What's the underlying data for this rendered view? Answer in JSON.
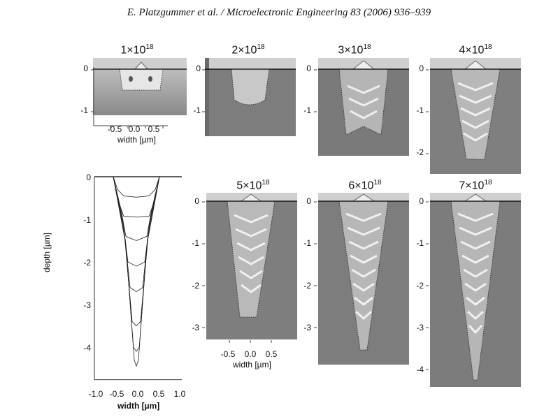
{
  "header": {
    "text": "E. Platzgummer et al. / Microelectronic Engineering 83 (2006) 936–939"
  },
  "panels": [
    {
      "base": "1×10",
      "exp": "18"
    },
    {
      "base": "2×10",
      "exp": "18"
    },
    {
      "base": "3×10",
      "exp": "18"
    },
    {
      "base": "4×10",
      "exp": "18"
    },
    {
      "base": "5×10",
      "exp": "18"
    },
    {
      "base": "6×10",
      "exp": "18"
    },
    {
      "base": "7×10",
      "exp": "18"
    }
  ],
  "ticks": {
    "y0": "0",
    "y1": "-1",
    "y2": "-2",
    "y3": "-3",
    "y4": "-4",
    "x_m05": "-0.5",
    "x_0": "0.0",
    "x_05": "0.5",
    "x_m10": "-1.0",
    "x_10": "1.0"
  },
  "labels": {
    "width": "width  [µm]",
    "width_bold": "width  [µm]",
    "depth": "depth [µm]"
  },
  "chart_data": {
    "type": "line",
    "title": "",
    "xlabel": "width [µm]",
    "ylabel": "depth [µm]",
    "xlim": [
      -1.0,
      1.0
    ],
    "ylim": [
      -4.6,
      0
    ],
    "series": [
      {
        "x": [
          -0.55,
          -0.45,
          -0.3,
          0,
          0.3,
          0.45,
          0.55
        ],
        "y": [
          0,
          -0.3,
          -0.45,
          -0.48,
          -0.45,
          -0.3,
          0
        ]
      },
      {
        "x": [
          -0.55,
          -0.42,
          -0.3,
          0,
          0.3,
          0.42,
          0.55
        ],
        "y": [
          0,
          -0.6,
          -0.93,
          -0.95,
          -0.93,
          -0.6,
          0
        ]
      },
      {
        "x": [
          -0.55,
          -0.36,
          -0.25,
          0,
          0.25,
          0.36,
          0.55
        ],
        "y": [
          0,
          -0.8,
          -1.4,
          -1.5,
          -1.4,
          -0.8,
          0
        ]
      },
      {
        "x": [
          -0.55,
          -0.33,
          -0.2,
          0,
          0.2,
          0.33,
          0.55
        ],
        "y": [
          0,
          -1.0,
          -2.0,
          -2.1,
          -2.0,
          -1.0,
          0
        ]
      },
      {
        "x": [
          -0.55,
          -0.3,
          -0.15,
          0,
          0.15,
          0.3,
          0.55
        ],
        "y": [
          0,
          -1.2,
          -2.6,
          -2.7,
          -2.6,
          -1.2,
          0
        ]
      },
      {
        "x": [
          -0.55,
          -0.28,
          -0.1,
          0,
          0.1,
          0.28,
          0.55
        ],
        "y": [
          0,
          -1.4,
          -3.4,
          -3.5,
          -3.4,
          -1.4,
          0
        ]
      },
      {
        "x": [
          -0.55,
          -0.26,
          -0.07,
          0,
          0.07,
          0.26,
          0.55
        ],
        "y": [
          0,
          -1.5,
          -4.0,
          -4.1,
          -4.0,
          -1.5,
          0
        ]
      },
      {
        "x": [
          -0.55,
          -0.25,
          -0.05,
          0,
          0.05,
          0.25,
          0.55
        ],
        "y": [
          0,
          -1.6,
          -4.3,
          -4.45,
          -4.3,
          -1.6,
          0
        ]
      }
    ]
  }
}
